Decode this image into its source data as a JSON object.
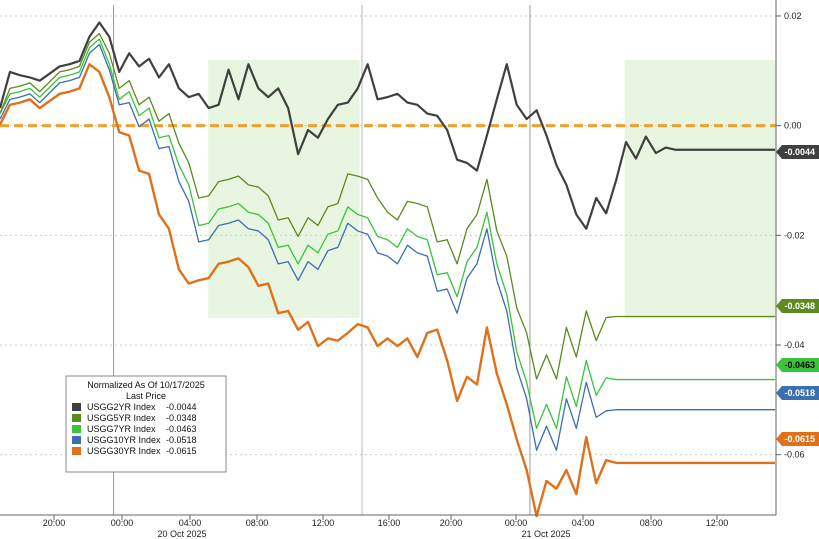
{
  "chart_data": {
    "type": "line",
    "legend": {
      "title": "Normalized As Of 10/17/2025",
      "subtitle": "Last Price",
      "position": "bottom-left"
    },
    "y_axis": {
      "side": "right",
      "ylim": [
        -0.071,
        0.022
      ],
      "ticks": [
        0.02,
        0.0,
        -0.02,
        -0.04,
        -0.06
      ],
      "tick_labels": [
        "0.02",
        "0.00",
        "-0.02",
        "-0.04",
        "-0.06"
      ]
    },
    "x_axis": {
      "tick_labels": [
        "20:00",
        "00:00",
        "04:00",
        "08:00",
        "12:00",
        "16:00",
        "20:00",
        "00:00",
        "04:00",
        "08:00",
        "12:00"
      ],
      "date_labels": [
        "20 Oct 2025",
        "21 Oct 2025"
      ]
    },
    "reference_line": {
      "value": 0.0,
      "color": "#f0a030"
    },
    "shaded_regions": [
      {
        "start": "20 Oct 2025 05:00",
        "end": "20 Oct 2025 13:00"
      },
      {
        "start": "21 Oct 2025 03:00",
        "end": "21 Oct 2025 11:00"
      }
    ],
    "series": [
      {
        "name": "USGG2YR Index",
        "value": "-0.0044",
        "color": "#404040",
        "x": [
          0,
          0.5,
          1,
          1.5,
          2,
          3,
          3.5,
          4,
          4.5,
          5,
          5.5,
          6,
          6.5,
          7,
          7.5,
          8,
          8.5,
          9,
          9.5,
          10,
          10.5,
          11,
          11.5,
          12,
          12.5,
          13,
          13.5,
          14,
          14.5,
          15,
          15.5,
          16,
          16.5,
          17,
          17.5,
          18,
          18.5,
          19,
          19.5,
          20,
          20.5,
          21,
          21.5,
          22,
          22.5,
          23,
          23.5,
          24,
          24.5,
          25,
          25.5,
          26,
          26.5,
          27,
          27.5,
          28,
          28.5,
          29,
          29.5,
          30,
          30.5,
          31,
          31.5,
          32,
          32.5,
          33,
          33.5,
          34,
          34.5,
          35,
          35.5,
          36,
          36.5,
          37,
          37.5,
          38,
          38.5,
          39
        ],
        "values": [
          0.002,
          0.011,
          0.008,
          0.01,
          0.007,
          0.012,
          0.01,
          0.013,
          0.015,
          0.02,
          0.015,
          0.011,
          0.012,
          0.012,
          0.011,
          0.01,
          0.01,
          0.008,
          0.004,
          0.007,
          0.002,
          0.005,
          0.009,
          0.006,
          0.01,
          0.008,
          0.004,
          0.008,
          0.002,
          -0.004,
          -0.002,
          -0.001,
          0.0,
          0.005,
          0.003,
          0.008,
          0.01,
          0.006,
          0.004,
          0.007,
          0.003,
          0.005,
          0.001,
          0.003,
          -0.002,
          -0.005,
          -0.008,
          -0.007,
          -0.003,
          0.006,
          0.01,
          0.005,
          0.0,
          0.004,
          -0.003,
          -0.006,
          -0.012,
          -0.015,
          -0.02,
          -0.012,
          -0.016,
          -0.01,
          -0.003,
          -0.006,
          -0.002,
          -0.005,
          -0.004,
          -0.0044,
          -0.0044,
          -0.0044,
          -0.0044,
          -0.0044,
          -0.0044,
          -0.0044,
          -0.0044,
          -0.0044,
          -0.0044,
          -0.0044
        ]
      },
      {
        "name": "USGG5YR Index",
        "value": "-0.0348",
        "color": "#5c8a1e",
        "x": [
          0,
          0.5,
          1,
          1.5,
          2,
          3,
          3.5,
          4,
          4.5,
          5,
          5.5,
          6,
          6.5,
          7,
          7.5,
          8,
          8.5,
          9,
          9.5,
          10,
          10.5,
          11,
          11.5,
          12,
          12.5,
          13,
          13.5,
          14,
          14.5,
          15,
          15.5,
          16,
          16.5,
          17,
          17.5,
          18,
          18.5,
          19,
          19.5,
          20,
          20.5,
          21,
          21.5,
          22,
          22.5,
          23,
          23.5,
          24,
          24.5,
          25,
          25.5,
          26,
          26.5,
          27,
          27.5,
          28,
          28.5,
          29,
          29.5,
          30,
          30.5,
          31,
          31.5,
          32,
          32.5,
          33,
          33.5,
          34,
          34.5,
          35,
          35.5,
          36,
          36.5,
          37,
          37.5,
          38,
          38.5,
          39
        ],
        "values": [
          0.001,
          0.008,
          0.006,
          0.009,
          0.005,
          0.011,
          0.009,
          0.012,
          0.014,
          0.018,
          0.012,
          0.008,
          0.007,
          0.005,
          0.004,
          0.002,
          0.001,
          -0.002,
          -0.008,
          -0.012,
          -0.014,
          -0.009,
          -0.011,
          -0.008,
          -0.012,
          -0.01,
          -0.014,
          -0.016,
          -0.018,
          -0.019,
          -0.018,
          -0.017,
          -0.016,
          -0.013,
          -0.01,
          -0.008,
          -0.011,
          -0.012,
          -0.017,
          -0.016,
          -0.015,
          -0.013,
          -0.016,
          -0.02,
          -0.022,
          -0.024,
          -0.02,
          -0.015,
          -0.011,
          -0.018,
          -0.025,
          -0.032,
          -0.039,
          -0.045,
          -0.043,
          -0.045,
          -0.038,
          -0.041,
          -0.035,
          -0.038,
          -0.035,
          -0.0348,
          -0.0348,
          -0.0348,
          -0.0348,
          -0.0348,
          -0.0348,
          -0.0348,
          -0.0348,
          -0.0348,
          -0.0348,
          -0.0348,
          -0.0348,
          -0.0348,
          -0.0348,
          -0.0348,
          -0.0348,
          -0.0348
        ]
      },
      {
        "name": "USGG7YR Index",
        "value": "-0.0463",
        "color": "#39c43a",
        "x": [
          0,
          0.5,
          1,
          1.5,
          2,
          3,
          3.5,
          4,
          4.5,
          5,
          5.5,
          6,
          6.5,
          7,
          7.5,
          8,
          8.5,
          9,
          9.5,
          10,
          10.5,
          11,
          11.5,
          12,
          12.5,
          13,
          13.5,
          14,
          14.5,
          15,
          15.5,
          16,
          16.5,
          17,
          17.5,
          18,
          18.5,
          19,
          19.5,
          20,
          20.5,
          21,
          21.5,
          22,
          22.5,
          23,
          23.5,
          24,
          24.5,
          25,
          25.5,
          26,
          26.5,
          27,
          27.5,
          28,
          28.5,
          29,
          29.5,
          30,
          30.5,
          31,
          31.5,
          32,
          32.5,
          33,
          33.5,
          34,
          34.5,
          35,
          35.5,
          36,
          36.5,
          37,
          37.5,
          38,
          38.5,
          39
        ],
        "values": [
          0.001,
          0.007,
          0.005,
          0.008,
          0.004,
          0.01,
          0.008,
          0.011,
          0.013,
          0.017,
          0.01,
          0.006,
          0.005,
          0.003,
          0.002,
          -0.001,
          -0.003,
          -0.006,
          -0.012,
          -0.017,
          -0.019,
          -0.014,
          -0.016,
          -0.013,
          -0.017,
          -0.015,
          -0.019,
          -0.021,
          -0.023,
          -0.024,
          -0.023,
          -0.022,
          -0.021,
          -0.018,
          -0.016,
          -0.015,
          -0.018,
          -0.019,
          -0.022,
          -0.021,
          -0.02,
          -0.019,
          -0.022,
          -0.026,
          -0.028,
          -0.03,
          -0.026,
          -0.021,
          -0.017,
          -0.024,
          -0.032,
          -0.04,
          -0.048,
          -0.054,
          -0.052,
          -0.054,
          -0.047,
          -0.05,
          -0.044,
          -0.048,
          -0.046,
          -0.0463,
          -0.0463,
          -0.0463,
          -0.0463,
          -0.0463,
          -0.0463,
          -0.0463,
          -0.0463,
          -0.0463,
          -0.0463,
          -0.0463,
          -0.0463,
          -0.0463,
          -0.0463,
          -0.0463,
          -0.0463,
          -0.0463
        ]
      },
      {
        "name": "USGG10YR Index",
        "value": "-0.0518",
        "color": "#3a6fb0",
        "x": [
          0,
          0.5,
          1,
          1.5,
          2,
          3,
          3.5,
          4,
          4.5,
          5,
          5.5,
          6,
          6.5,
          7,
          7.5,
          8,
          8.5,
          9,
          9.5,
          10,
          10.5,
          11,
          11.5,
          12,
          12.5,
          13,
          13.5,
          14,
          14.5,
          15,
          15.5,
          16,
          16.5,
          17,
          17.5,
          18,
          18.5,
          19,
          19.5,
          20,
          20.5,
          21,
          21.5,
          22,
          22.5,
          23,
          23.5,
          24,
          24.5,
          25,
          25.5,
          26,
          26.5,
          27,
          27.5,
          28,
          28.5,
          29,
          29.5,
          30,
          30.5,
          31,
          31.5,
          32,
          32.5,
          33,
          33.5,
          34,
          34.5,
          35,
          35.5,
          36,
          36.5,
          37,
          37.5,
          38,
          38.5,
          39
        ],
        "values": [
          0.0,
          0.006,
          0.004,
          0.007,
          0.003,
          0.009,
          0.007,
          0.01,
          0.012,
          0.016,
          0.009,
          0.005,
          0.003,
          0.001,
          0.0,
          -0.003,
          -0.005,
          -0.009,
          -0.015,
          -0.02,
          -0.022,
          -0.017,
          -0.019,
          -0.016,
          -0.02,
          -0.018,
          -0.022,
          -0.024,
          -0.026,
          -0.027,
          -0.026,
          -0.025,
          -0.024,
          -0.021,
          -0.019,
          -0.018,
          -0.021,
          -0.022,
          -0.025,
          -0.024,
          -0.023,
          -0.022,
          -0.025,
          -0.029,
          -0.031,
          -0.033,
          -0.029,
          -0.024,
          -0.02,
          -0.027,
          -0.035,
          -0.043,
          -0.051,
          -0.058,
          -0.056,
          -0.058,
          -0.051,
          -0.054,
          -0.048,
          -0.052,
          -0.052,
          -0.0518,
          -0.0518,
          -0.0518,
          -0.0518,
          -0.0518,
          -0.0518,
          -0.0518,
          -0.0518,
          -0.0518,
          -0.0518,
          -0.0518,
          -0.0518,
          -0.0518,
          -0.0518,
          -0.0518,
          -0.0518,
          -0.0518
        ]
      },
      {
        "name": "USGG30YR Index",
        "value": "-0.0615",
        "color": "#e0701a",
        "x": [
          0,
          0.5,
          1,
          1.5,
          2,
          3,
          3.5,
          4,
          4.5,
          5,
          5.5,
          6,
          6.5,
          7,
          7.5,
          8,
          8.5,
          9,
          9.5,
          10,
          10.5,
          11,
          11.5,
          12,
          12.5,
          13,
          13.5,
          14,
          14.5,
          15,
          15.5,
          16,
          16.5,
          17,
          17.5,
          18,
          18.5,
          19,
          19.5,
          20,
          20.5,
          21,
          21.5,
          22,
          22.5,
          23,
          23.5,
          24,
          24.5,
          25,
          25.5,
          26,
          26.5,
          27,
          27.5,
          28,
          28.5,
          29,
          29.5,
          30,
          30.5,
          31,
          31.5,
          32,
          32.5,
          33,
          33.5,
          34,
          34.5,
          35,
          35.5,
          36,
          36.5,
          37,
          37.5,
          38,
          38.5,
          39
        ],
        "values": [
          -0.001,
          0.005,
          0.003,
          0.006,
          0.002,
          0.007,
          0.005,
          0.008,
          0.01,
          0.011,
          0.004,
          0.0,
          -0.003,
          -0.007,
          -0.01,
          -0.015,
          -0.02,
          -0.025,
          -0.03,
          -0.027,
          -0.029,
          -0.024,
          -0.026,
          -0.023,
          -0.027,
          -0.028,
          -0.03,
          -0.033,
          -0.035,
          -0.036,
          -0.037,
          -0.039,
          -0.04,
          -0.038,
          -0.039,
          -0.035,
          -0.038,
          -0.039,
          -0.04,
          -0.039,
          -0.04,
          -0.041,
          -0.039,
          -0.036,
          -0.044,
          -0.049,
          -0.047,
          -0.046,
          -0.038,
          -0.044,
          -0.052,
          -0.056,
          -0.064,
          -0.07,
          -0.066,
          -0.065,
          -0.064,
          -0.066,
          -0.058,
          -0.064,
          -0.061,
          -0.0615,
          -0.0615,
          -0.0615,
          -0.0615,
          -0.0615,
          -0.0615,
          -0.0615,
          -0.0615,
          -0.0615,
          -0.0615,
          -0.0615,
          -0.0615,
          -0.0615,
          -0.0615,
          -0.0615,
          -0.0615,
          -0.0615
        ]
      }
    ]
  }
}
